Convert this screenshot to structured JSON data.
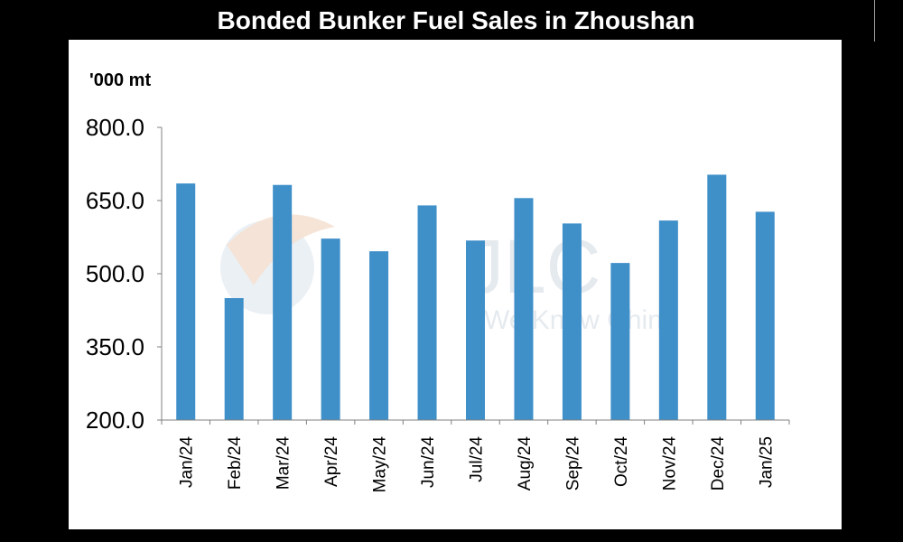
{
  "chart_data": {
    "type": "bar",
    "title": "Bonded Bunker Fuel Sales in Zhoushan",
    "ylabel": "'000 mt",
    "xlabel": "",
    "ylim": [
      200,
      800
    ],
    "yticks": [
      "200.0",
      "350.0",
      "500.0",
      "650.0",
      "800.0"
    ],
    "ytick_values": [
      200,
      350,
      500,
      650,
      800
    ],
    "categories": [
      "Jan/24",
      "Feb/24",
      "Mar/24",
      "Apr/24",
      "May/24",
      "Jun/24",
      "Jul/24",
      "Aug/24",
      "Sep/24",
      "Oct/24",
      "Nov/24",
      "Dec/24",
      "Jan/25"
    ],
    "values": [
      685,
      450,
      682,
      572,
      546,
      640,
      568,
      655,
      603,
      522,
      609,
      703,
      627
    ],
    "bar_color": "#3f8fc9",
    "grid": false,
    "legend": "none"
  },
  "watermark": {
    "text_main": "JLC",
    "text_tagline": "We Know China"
  }
}
